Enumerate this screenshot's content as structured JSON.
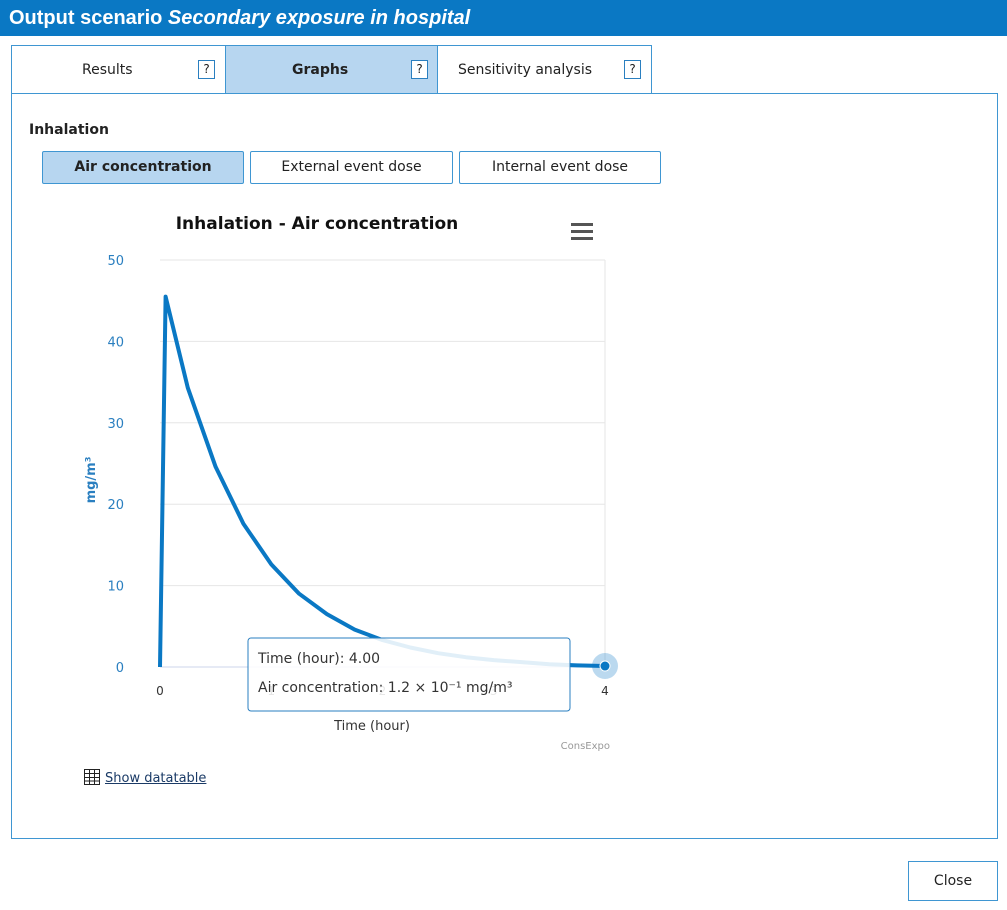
{
  "window": {
    "title_prefix": "Output scenario",
    "title_scenario": "Secondary exposure in hospital"
  },
  "tabs": [
    {
      "label": "Results",
      "help": "?"
    },
    {
      "label": "Graphs",
      "help": "?",
      "active": true
    },
    {
      "label": "Sensitivity analysis",
      "help": "?"
    }
  ],
  "section": {
    "title": "Inhalation"
  },
  "sub_tabs": [
    {
      "label": "Air concentration",
      "active": true
    },
    {
      "label": "External event dose"
    },
    {
      "label": "Internal event dose"
    }
  ],
  "chart_data": {
    "type": "line",
    "title": "Inhalation - Air concentration",
    "xlabel": "Time (hour)",
    "ylabel": "mg/m³",
    "xlim": [
      0,
      4
    ],
    "ylim": [
      0,
      50
    ],
    "x_ticks": [
      "0",
      "1",
      "2",
      "3",
      "4"
    ],
    "y_ticks": [
      "0",
      "10",
      "20",
      "30",
      "40",
      "50"
    ],
    "grid": true,
    "series": [
      {
        "color": "#0a78c4",
        "x": [
          0,
          0.05,
          0.25,
          0.5,
          0.75,
          1.0,
          1.25,
          1.5,
          1.75,
          2.0,
          2.25,
          2.5,
          2.75,
          3.0,
          3.25,
          3.5,
          3.75,
          4.0
        ],
        "y": [
          0,
          45.5,
          34.3,
          24.6,
          17.6,
          12.6,
          9.0,
          6.5,
          4.6,
          3.3,
          2.4,
          1.7,
          1.2,
          0.85,
          0.6,
          0.35,
          0.2,
          0.12
        ]
      }
    ],
    "tooltip": {
      "line1": "Time (hour): 4.00",
      "line2": "Air concentration: 1.2 × 10⁻¹ mg/m³",
      "x": 4.0,
      "y": 0.12
    },
    "credit": "ConsExpo",
    "menu_icon": "hamburger-icon"
  },
  "datatable": {
    "icon": "table-icon",
    "label": "Show datatable"
  },
  "footer": {
    "close_label": "Close"
  },
  "colors": {
    "accent": "#0a78c4",
    "active_tab": "#b7d6f0",
    "border": "#3f96d2"
  }
}
